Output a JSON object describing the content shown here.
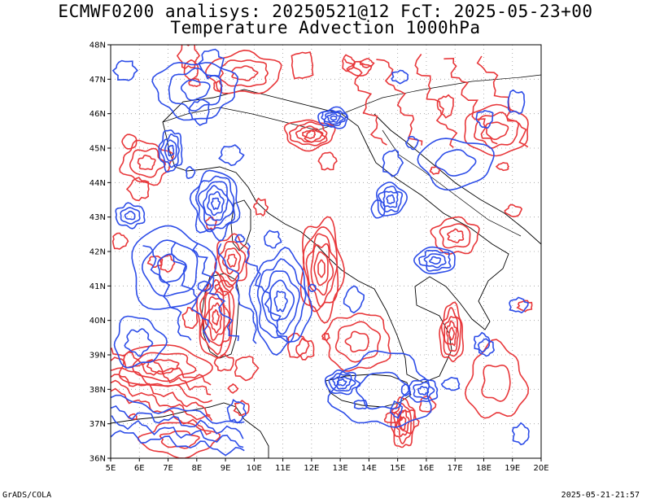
{
  "header": {
    "line1": "ECMWF0200 analisys: 20250521@12 FcT: 2025-05-23+00",
    "line2": "Temperature Advection 1000hPa"
  },
  "axes": {
    "lon_labels": [
      "5E",
      "6E",
      "7E",
      "8E",
      "9E",
      "10E",
      "11E",
      "12E",
      "13E",
      "14E",
      "15E",
      "16E",
      "17E",
      "18E",
      "19E",
      "20E"
    ],
    "lat_labels": [
      "48N",
      "47N",
      "46N",
      "45N",
      "44N",
      "43N",
      "42N",
      "41N",
      "40N",
      "39N",
      "38N",
      "37N",
      "36N"
    ],
    "lon_range": [
      5,
      20
    ],
    "lat_range": [
      36,
      48
    ]
  },
  "colors": {
    "positive": "#e8373a",
    "negative": "#2d4de8",
    "coast": "#000000",
    "grid": "#9a9a9a"
  },
  "footer": {
    "left": "GrADS/COLA",
    "right": "2025-05-21-21:57"
  }
}
